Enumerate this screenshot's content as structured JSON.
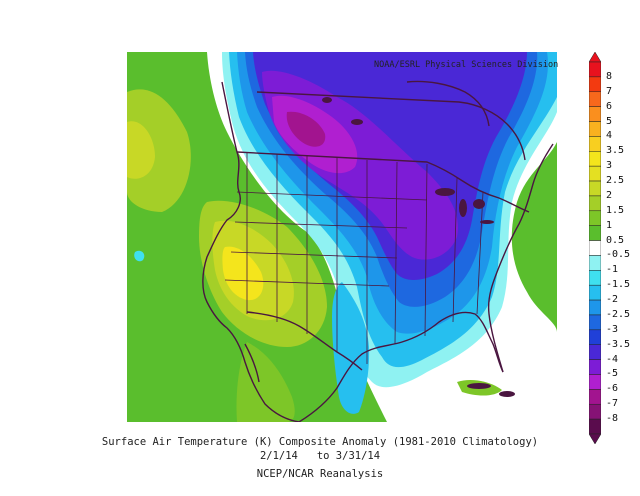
{
  "credit": "NOAA/ESRL Physical Sciences Division",
  "caption": {
    "line1": "Surface Air Temperature (K) Composite Anomaly (1981-2010 Climatology)",
    "line2": "2/1/14   to 3/31/14",
    "line3": "NCEP/NCAR Reanalysis"
  },
  "colorbar": {
    "labels": [
      "8",
      "7",
      "6",
      "5",
      "4",
      "3.5",
      "3",
      "2.5",
      "2",
      "1.5",
      "1",
      "0.5",
      "-0.5",
      "-1",
      "-1.5",
      "-2",
      "-2.5",
      "-3",
      "-3.5",
      "-4",
      "-5",
      "-6",
      "-7",
      "-8"
    ],
    "colors": [
      "#e8121e",
      "#f33a10",
      "#f7681c",
      "#fa8f1e",
      "#f9b11f",
      "#f8cf20",
      "#f4e51c",
      "#e4e022",
      "#c8d826",
      "#a4cf28",
      "#7dc628",
      "#5abe2d",
      "#ffffff",
      "#8ff2f2",
      "#3fe0ef",
      "#26bfef",
      "#1e96ea",
      "#1e68e0",
      "#2040d8",
      "#4a28d6",
      "#7d1cd6",
      "#b01fd0",
      "#a2148f",
      "#861275",
      "#5a0c4d"
    ]
  },
  "colors": {
    "land_outline": "#4a1640",
    "warm_anomaly": "#f2e51f",
    "cold_anomaly": "#7d1cd6"
  }
}
